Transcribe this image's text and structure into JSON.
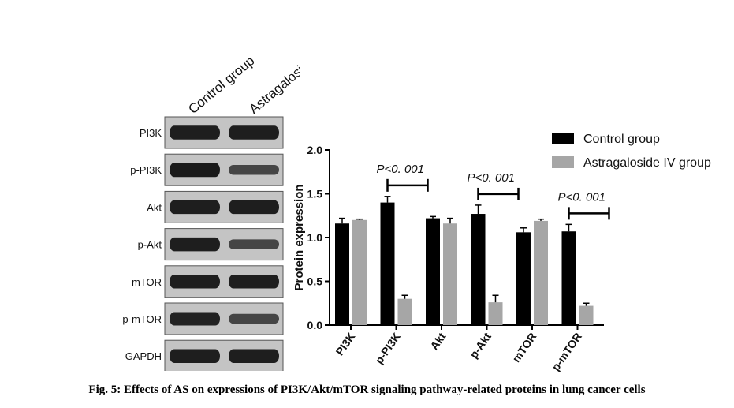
{
  "blot": {
    "column_headers": [
      "Control group",
      "Astragaloside IV group"
    ],
    "rows": [
      {
        "label": "PI3K",
        "bands": [
          0.95,
          0.95
        ]
      },
      {
        "label": "p-PI3K",
        "bands": [
          1.0,
          0.45
        ]
      },
      {
        "label": "Akt",
        "bands": [
          0.95,
          0.95
        ]
      },
      {
        "label": "p-Akt",
        "bands": [
          0.95,
          0.45
        ]
      },
      {
        "label": "mTOR",
        "bands": [
          0.95,
          0.95
        ]
      },
      {
        "label": "p-mTOR",
        "bands": [
          0.9,
          0.45
        ]
      },
      {
        "label": "GAPDH",
        "bands": [
          0.95,
          0.95
        ]
      }
    ]
  },
  "chart_data": {
    "type": "bar",
    "categories": [
      "PI3K",
      "p-PI3K",
      "Akt",
      "p-Akt",
      "mTOR",
      "p-mTOR"
    ],
    "series": [
      {
        "name": "Control group",
        "color": "#000000",
        "values": [
          1.16,
          1.4,
          1.22,
          1.27,
          1.06,
          1.07
        ],
        "errors": [
          0.06,
          0.07,
          0.02,
          0.1,
          0.05,
          0.08
        ]
      },
      {
        "name": "Astragaloside IV group",
        "color": "#a6a6a6",
        "values": [
          1.2,
          0.3,
          1.16,
          0.26,
          1.19,
          0.22
        ],
        "errors": [
          0.01,
          0.04,
          0.06,
          0.08,
          0.02,
          0.03
        ]
      }
    ],
    "ylabel": "Protein expression",
    "ylim": [
      0,
      2.0
    ],
    "yticks": [
      "0.0",
      "0.5",
      "1.0",
      "1.5",
      "2.0"
    ],
    "annotations": [
      {
        "category": "p-PI3K",
        "text": "P<0. 001"
      },
      {
        "category": "p-Akt",
        "text": "P<0. 001"
      },
      {
        "category": "p-mTOR",
        "text": "P<0. 001"
      }
    ],
    "legend_position": "top-right"
  },
  "caption": "Fig. 5: Effects of AS on expressions of PI3K/Akt/mTOR signaling pathway-related proteins in lung cancer cells"
}
